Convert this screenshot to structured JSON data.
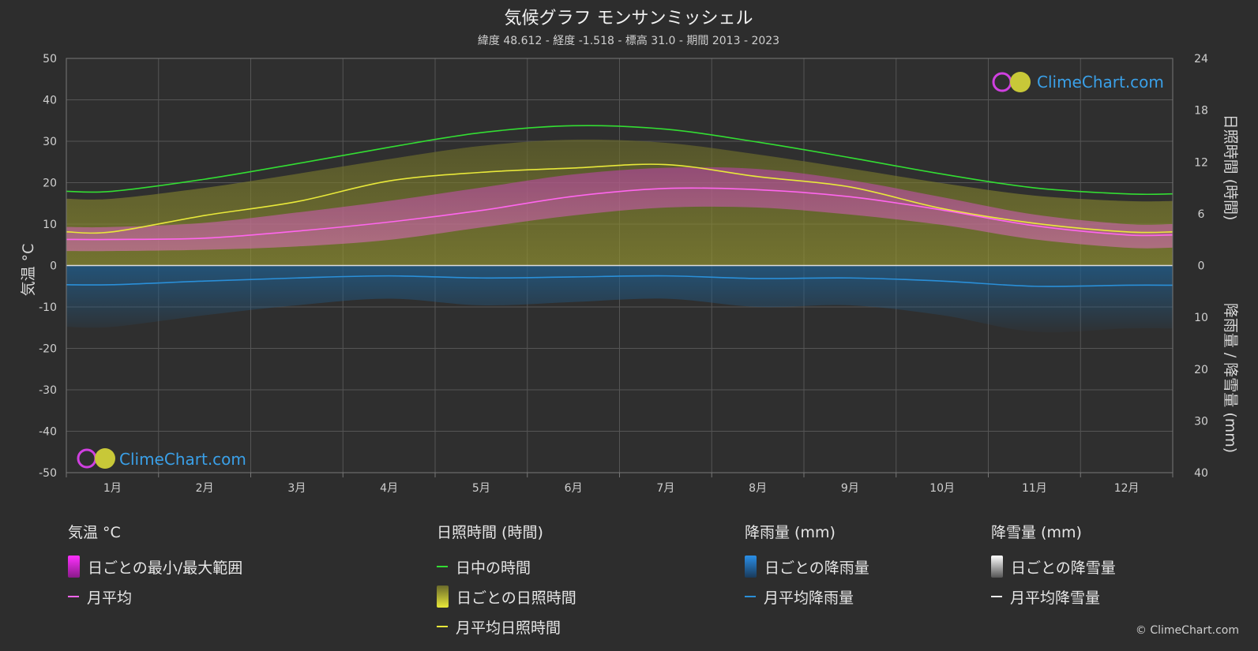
{
  "header": {
    "title": "気候グラフ モンサンミッシェル",
    "subtitle": "緯度 48.612 - 経度 -1.518 - 標高 31.0 - 期間 2013 - 2023"
  },
  "watermark": "ClimeChart.com",
  "copyright": "© ClimeChart.com",
  "chart_data": {
    "type": "area",
    "categories": [
      "1月",
      "2月",
      "3月",
      "4月",
      "5月",
      "6月",
      "7月",
      "8月",
      "9月",
      "10月",
      "11月",
      "12月"
    ],
    "axes": {
      "temperature": {
        "label": "気温 °C",
        "range": [
          -50,
          50
        ],
        "ticks": [
          "50",
          "40",
          "30",
          "20",
          "10",
          "0",
          "-10",
          "-20",
          "-30",
          "-40",
          "-50"
        ]
      },
      "sunshine": {
        "label": "日照時間 (時間)",
        "range": [
          0,
          24
        ],
        "ticks": [
          "24",
          "18",
          "12",
          "6",
          "0"
        ]
      },
      "precipitation": {
        "label": "降雨量 / 降雪量 (mm)",
        "range": [
          0,
          40
        ],
        "ticks": [
          "0",
          "10",
          "20",
          "30",
          "40"
        ]
      }
    },
    "grid": true,
    "series": [
      {
        "name": "日中の時間",
        "axis": "sunshine",
        "color": "#33dd33",
        "values": [
          8.6,
          10.0,
          11.8,
          13.7,
          15.4,
          16.2,
          15.8,
          14.3,
          12.5,
          10.6,
          9.0,
          8.3
        ]
      },
      {
        "name": "月平均日照時間",
        "axis": "sunshine",
        "color": "#e8e83a",
        "values": [
          3.9,
          5.8,
          7.4,
          9.8,
          10.8,
          11.3,
          11.7,
          10.3,
          9.1,
          6.6,
          4.9,
          3.9
        ]
      },
      {
        "name": "月平均",
        "axis": "temperature",
        "color": "#ff66ee",
        "values": [
          6.3,
          6.6,
          8.3,
          10.5,
          13.3,
          16.7,
          18.6,
          18.3,
          16.6,
          13.4,
          9.6,
          7.4
        ]
      },
      {
        "name": "月平均降雨量",
        "axis": "precipitation",
        "color": "#2a8fd8",
        "values": [
          3.7,
          3.0,
          2.4,
          2.0,
          2.4,
          2.2,
          2.0,
          2.5,
          2.4,
          3.0,
          4.0,
          3.8
        ]
      }
    ],
    "daily_temperature_range": {
      "min": [
        3.5,
        3.8,
        4.6,
        6.2,
        9.2,
        12.1,
        14.0,
        14.0,
        12.3,
        9.8,
        6.3,
        4.3
      ],
      "max": [
        9.3,
        10.3,
        12.8,
        15.6,
        18.8,
        22.0,
        23.6,
        23.3,
        20.6,
        16.5,
        12.3,
        10.0
      ]
    }
  },
  "legend": [
    {
      "title": "気温 °C",
      "items": [
        {
          "type": "box",
          "label": "日ごとの最小/最大範囲",
          "color": "#e020e0"
        },
        {
          "type": "line",
          "label": "月平均",
          "color": "#ff66ee"
        }
      ]
    },
    {
      "title": "日照時間 (時間)",
      "items": [
        {
          "type": "line",
          "label": "日中の時間",
          "color": "#33dd33"
        },
        {
          "type": "box",
          "label": "日ごとの日照時間",
          "color": "#d8d83a"
        },
        {
          "type": "line",
          "label": "月平均日照時間",
          "color": "#e8e83a"
        }
      ]
    },
    {
      "title": "降雨量 (mm)",
      "items": [
        {
          "type": "box",
          "label": "日ごとの降雨量",
          "color": "#2a7fc8"
        },
        {
          "type": "line",
          "label": "月平均降雨量",
          "color": "#2a8fd8"
        }
      ]
    },
    {
      "title": "降雪量 (mm)",
      "items": [
        {
          "type": "box",
          "label": "日ごとの降雪量",
          "color": "#dddddd"
        },
        {
          "type": "line",
          "label": "月平均降雪量",
          "color": "#eeeeee"
        }
      ]
    }
  ]
}
